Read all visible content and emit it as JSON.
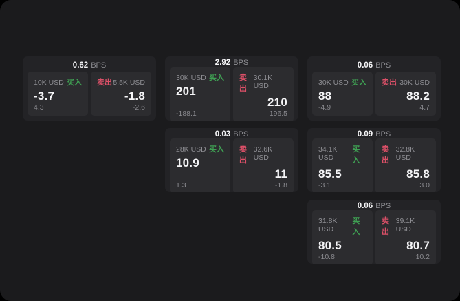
{
  "labels": {
    "buy": "买入",
    "sell": "卖出",
    "bps_suffix": "BPS"
  },
  "colors": {
    "background": "#000000",
    "panel": "#1b1b1d",
    "card": "#232326",
    "side_panel": "#2c2c2f",
    "text_primary": "#f5f5f7",
    "text_secondary": "#8e8e93",
    "buy_green": "#3fa053",
    "sell_red": "#dd5068"
  },
  "cards": [
    {
      "col": 1,
      "row": 1,
      "bps": "0.62",
      "buy": {
        "size": "10K USD",
        "value": "-3.7",
        "sub": "4.3"
      },
      "sell": {
        "size": "5.5K USD",
        "value": "-1.8",
        "sub": "-2.6"
      }
    },
    {
      "col": 2,
      "row": 1,
      "bps": "2.92",
      "buy": {
        "size": "30K USD",
        "value": "201",
        "sub": "-188.1"
      },
      "sell": {
        "size": "30.1K USD",
        "value": "210",
        "sub": "196.5"
      }
    },
    {
      "col": 3,
      "row": 1,
      "bps": "0.06",
      "buy": {
        "size": "30K USD",
        "value": "88",
        "sub": "-4.9"
      },
      "sell": {
        "size": "30K USD",
        "value": "88.2",
        "sub": "4.7"
      }
    },
    {
      "col": 2,
      "row": 2,
      "bps": "0.03",
      "buy": {
        "size": "28K USD",
        "value": "10.9",
        "sub": "1.3"
      },
      "sell": {
        "size": "32.6K USD",
        "value": "11",
        "sub": "-1.8"
      }
    },
    {
      "col": 3,
      "row": 2,
      "bps": "0.09",
      "buy": {
        "size": "34.1K USD",
        "value": "85.5",
        "sub": "-3.1"
      },
      "sell": {
        "size": "32.8K USD",
        "value": "85.8",
        "sub": "3.0"
      }
    },
    {
      "col": 3,
      "row": 3,
      "bps": "0.06",
      "buy": {
        "size": "31.8K USD",
        "value": "80.5",
        "sub": "-10.8"
      },
      "sell": {
        "size": "39.1K USD",
        "value": "80.7",
        "sub": "10.2"
      }
    }
  ]
}
